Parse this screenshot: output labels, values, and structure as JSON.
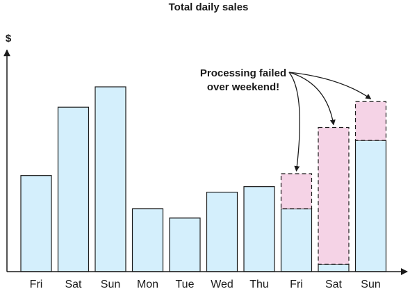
{
  "chart_data": {
    "type": "bar",
    "title": "Total daily sales",
    "ylabel": "$",
    "xlabel": "",
    "categories": [
      "Fri",
      "Sat",
      "Sun",
      "Mon",
      "Tue",
      "Wed",
      "Thu",
      "Fri",
      "Sat",
      "Sun"
    ],
    "ylim": [
      0,
      100
    ],
    "series": [
      {
        "values": [
          52,
          89,
          100,
          34,
          29,
          43,
          46,
          34,
          4,
          71
        ]
      },
      {
        "values": [
          0,
          0,
          0,
          0,
          0,
          0,
          0,
          19,
          74,
          21
        ]
      }
    ],
    "annotation": "Processing failed\nover weekend!",
    "colors": {
      "recorded_fill": "#d4effc",
      "missing_fill": "#f5d3e6",
      "outline": "#1a1a1a",
      "axis": "#1a1a1a"
    },
    "grid": false
  }
}
